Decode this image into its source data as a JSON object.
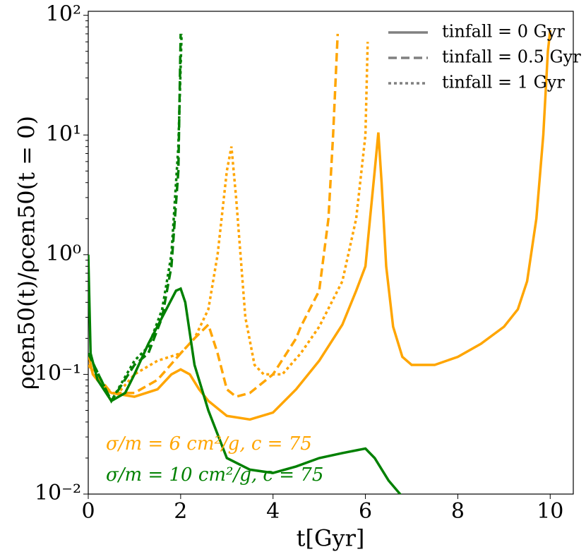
{
  "chart_data": {
    "type": "line",
    "xlabel": "t[Gyr]",
    "ylabel": "ρcen50(t)/ρcen50(t = 0)",
    "xlim": [
      0,
      10.5
    ],
    "ylim": [
      0.01,
      108
    ],
    "log_y": true,
    "xticks": [
      0,
      2,
      4,
      6,
      8,
      10
    ],
    "yticks": [
      {
        "value": 0.01,
        "label": "10⁻²"
      },
      {
        "value": 0.1,
        "label": "10⁻¹"
      },
      {
        "value": 1,
        "label": "10⁰"
      },
      {
        "value": 10,
        "label": "10¹"
      },
      {
        "value": 100,
        "label": "10²"
      }
    ],
    "legend_position": "upper right",
    "legend": [
      {
        "label": "tinfall = 0 Gyr",
        "dash": "solid",
        "color": "#808080"
      },
      {
        "label": "tinfall = 0.5 Gyr",
        "dash": "dashed",
        "color": "#808080"
      },
      {
        "label": "tinfall = 1 Gyr",
        "dash": "dotted",
        "color": "#808080"
      }
    ],
    "annotations": [
      {
        "text": "σ/m = 6 cm²/g, c = 75",
        "color": "#ffa500"
      },
      {
        "text": "σ/m = 10 cm²/g, c = 75",
        "color": "#008000"
      }
    ],
    "series": [
      {
        "color": "#ffa500",
        "dash": "solid",
        "x": [
          0,
          0.1,
          0.3,
          0.5,
          1,
          1.5,
          1.8,
          2,
          2.2,
          2.4,
          2.6,
          3,
          3.5,
          4,
          4.5,
          5,
          5.5,
          5.8,
          6,
          6.1,
          6.2,
          6.28,
          6.35,
          6.45,
          6.6,
          6.8,
          7,
          7.5,
          8,
          8.5,
          9,
          9.3,
          9.5,
          9.7,
          9.85,
          9.95,
          10
        ],
        "values": [
          0.15,
          0.1,
          0.08,
          0.07,
          0.065,
          0.075,
          0.1,
          0.11,
          0.1,
          0.075,
          0.06,
          0.045,
          0.042,
          0.048,
          0.075,
          0.13,
          0.26,
          0.5,
          0.8,
          2,
          5,
          10.5,
          4,
          0.8,
          0.25,
          0.14,
          0.12,
          0.12,
          0.14,
          0.18,
          0.25,
          0.35,
          0.6,
          2,
          10,
          50,
          75
        ]
      },
      {
        "color": "#ffa500",
        "dash": "dashed",
        "x": [
          0,
          0.5,
          1,
          1.5,
          2,
          2.3,
          2.6,
          2.8,
          3,
          3.2,
          3.5,
          4,
          4.5,
          4.6,
          5,
          5.2,
          5.3,
          5.4
        ],
        "values": [
          0.12,
          0.07,
          0.07,
          0.09,
          0.15,
          0.2,
          0.26,
          0.15,
          0.075,
          0.065,
          0.07,
          0.1,
          0.2,
          0.25,
          0.5,
          2,
          10,
          70
        ]
      },
      {
        "color": "#ffa500",
        "dash": "dotted",
        "x": [
          0,
          0.5,
          1,
          1.5,
          2,
          2.3,
          2.6,
          2.8,
          3,
          3.1,
          3.2,
          3.4,
          3.6,
          3.8,
          4.2,
          4.6,
          5,
          5.5,
          5.8,
          6,
          6.05
        ],
        "values": [
          0.12,
          0.06,
          0.1,
          0.13,
          0.15,
          0.2,
          0.35,
          1,
          5,
          8,
          3,
          0.3,
          0.12,
          0.1,
          0.1,
          0.15,
          0.25,
          0.6,
          2,
          10,
          60
        ]
      },
      {
        "color": "#008000",
        "dash": "solid",
        "x": [
          0,
          0.05,
          0.2,
          0.5,
          0.8,
          1,
          1.3,
          1.6,
          1.9,
          2,
          2.1,
          2.3,
          2.6,
          3,
          3.5,
          4,
          4.5,
          5,
          5.5,
          6,
          6.2,
          6.5,
          6.8
        ],
        "values": [
          1,
          0.15,
          0.09,
          0.06,
          0.07,
          0.1,
          0.18,
          0.3,
          0.5,
          0.52,
          0.4,
          0.12,
          0.05,
          0.02,
          0.016,
          0.015,
          0.017,
          0.02,
          0.022,
          0.024,
          0.02,
          0.013,
          0.0095
        ]
      },
      {
        "color": "#008000",
        "dash": "dashed",
        "x": [
          0,
          0.5,
          1,
          1.3,
          1.6,
          1.8,
          1.95,
          2
        ],
        "values": [
          0.15,
          0.06,
          0.12,
          0.15,
          0.3,
          0.8,
          5,
          70
        ]
      },
      {
        "color": "#008000",
        "dash": "dotted",
        "x": [
          0,
          0.5,
          1,
          1.3,
          1.6,
          1.8,
          1.95,
          2.02
        ],
        "values": [
          0.15,
          0.06,
          0.13,
          0.17,
          0.35,
          1,
          8,
          70
        ]
      }
    ]
  }
}
